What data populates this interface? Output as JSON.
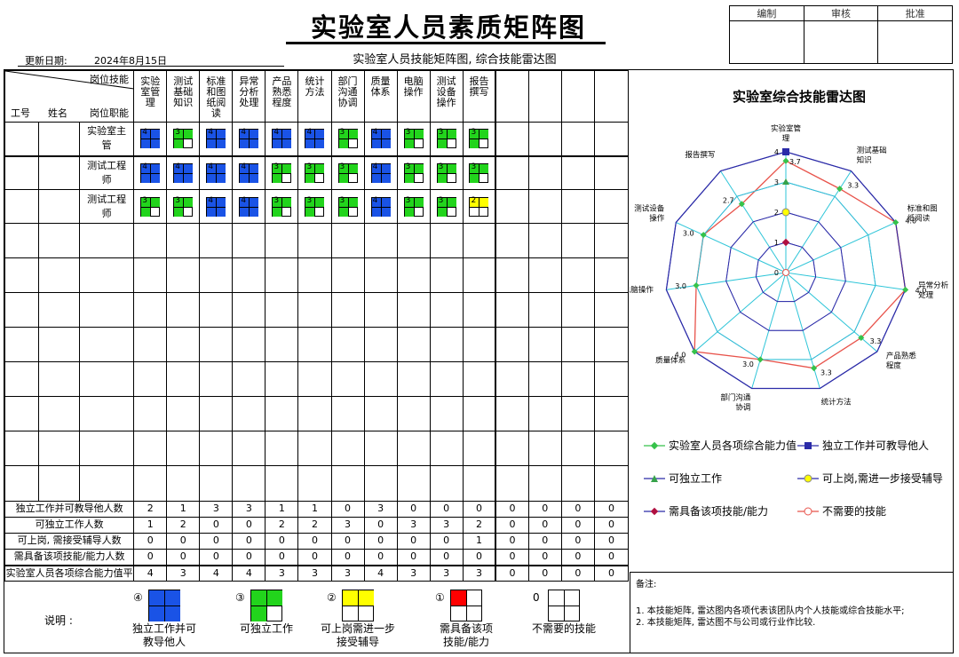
{
  "header": {
    "title": "实验室人员素质矩阵图",
    "update_label": "更新日期:",
    "update_date": "2024年8月15日",
    "subtitle": "实验室人员技能矩阵图, 综合技能雷达图",
    "approvals": [
      "编制",
      "审核",
      "批准"
    ]
  },
  "matrix": {
    "corner_top": "岗位技能",
    "col_id": "工号",
    "col_name": "姓名",
    "col_role": "岗位职能",
    "skills": [
      "实验\n室管\n理",
      "测试\n基础\n知识",
      "标准\n和图\n纸阅\n读",
      "异常\n分析\n处理",
      "产品\n熟悉\n程度",
      "统计\n方法",
      "部门\n沟通\n协调",
      "质量\n体系",
      "电脑\n操作",
      "测试\n设备\n操作",
      "报告\n撰写",
      "",
      "",
      "",
      ""
    ],
    "people": [
      {
        "id": "",
        "name": "",
        "role": "实验室主管",
        "levels": [
          4,
          3,
          4,
          4,
          4,
          4,
          3,
          4,
          3,
          3,
          3
        ]
      },
      {
        "id": "",
        "name": "",
        "role": "测试工程师",
        "levels": [
          4,
          4,
          4,
          4,
          3,
          3,
          3,
          4,
          3,
          3,
          3
        ]
      },
      {
        "id": "",
        "name": "",
        "role": "测试工程师",
        "levels": [
          3,
          3,
          4,
          4,
          3,
          3,
          3,
          4,
          3,
          3,
          2
        ]
      }
    ],
    "summary": [
      {
        "label": "独立工作并可教导他人数",
        "values": [
          "2",
          "1",
          "3",
          "3",
          "1",
          "1",
          "0",
          "3",
          "0",
          "0",
          "0",
          "0",
          "0",
          "0",
          "0"
        ]
      },
      {
        "label": "可独立工作人数",
        "values": [
          "1",
          "2",
          "0",
          "0",
          "2",
          "2",
          "3",
          "0",
          "3",
          "3",
          "2",
          "0",
          "0",
          "0",
          "0"
        ]
      },
      {
        "label": "可上岗, 需接受辅导人数",
        "values": [
          "0",
          "0",
          "0",
          "0",
          "0",
          "0",
          "0",
          "0",
          "0",
          "0",
          "1",
          "0",
          "0",
          "0",
          "0"
        ]
      },
      {
        "label": "需具备该项技能/能力人数",
        "values": [
          "0",
          "0",
          "0",
          "0",
          "0",
          "0",
          "0",
          "0",
          "0",
          "0",
          "0",
          "0",
          "0",
          "0",
          "0"
        ]
      },
      {
        "label": "实验室人员各项综合能力值平",
        "values": [
          "4",
          "3",
          "4",
          "4",
          "3",
          "3",
          "3",
          "4",
          "3",
          "3",
          "3",
          "0",
          "0",
          "0",
          "0"
        ]
      }
    ]
  },
  "colors": {
    "level4": "#1a53e6",
    "level3": "#22d41c",
    "level2": "#ffff00",
    "level1": "#ff0000"
  },
  "legend": {
    "label": "说明 :",
    "items": [
      {
        "mark": "④",
        "text": "独立工作并可\n教导他人",
        "level": 4
      },
      {
        "mark": "③",
        "text": "可独立工作",
        "level": 3
      },
      {
        "mark": "②",
        "text": "可上岗需进一步\n接受辅导",
        "level": 2
      },
      {
        "mark": "①",
        "text": "需具备该项\n技能/能力",
        "level": 1
      },
      {
        "mark": "0",
        "text": "不需要的技能",
        "level": 0
      }
    ]
  },
  "chart_data": {
    "type": "radar",
    "title": "实验室综合技能雷达图",
    "axes": [
      "实验室管理",
      "测试基础知识",
      "标准和图纸阅读",
      "异常分析处理",
      "产品熟悉程度",
      "统计方法",
      "部门沟通协调",
      "质量体系",
      "电脑操作",
      "测试设备操作",
      "报告撰写"
    ],
    "axis_labels": [
      "实验室管\n理",
      "测试基础\n知识",
      "标准和图\n纸阅读",
      "异常分析\n处理",
      "产品熟悉\n程度",
      "统计方法",
      "部门沟通\n协调",
      "质量体系",
      "电脑操作",
      "测试设备\n操作",
      "报告撰写"
    ],
    "scale_labels": [
      "0",
      "1",
      "2",
      "3",
      "4"
    ],
    "range": [
      0,
      4
    ],
    "series": [
      {
        "name": "实验室人员各项综合能力值",
        "values": [
          3.7,
          3.3,
          4.0,
          4.0,
          3.3,
          3.3,
          3.0,
          4.0,
          3.0,
          3.0,
          2.7
        ],
        "color": "#e8534b",
        "marker": "diamond"
      },
      {
        "name": "独立工作并可教导他人",
        "values": [
          4,
          4,
          4,
          4,
          4,
          4,
          4,
          4,
          4,
          4,
          4
        ],
        "color": "#2b2ba8",
        "marker": "square"
      },
      {
        "name": "可独立工作",
        "values": [
          3,
          3,
          3,
          3,
          3,
          3,
          3,
          3,
          3,
          3,
          3
        ],
        "color": "#2ec5d8",
        "marker": "triangle"
      },
      {
        "name": "可上岗,需进一步接受辅导",
        "values": [
          2,
          2,
          2,
          2,
          2,
          2,
          2,
          2,
          2,
          2,
          2
        ],
        "color": "#2b2ba8",
        "marker": "circle"
      },
      {
        "name": "需具备该项技能/能力",
        "values": [
          1,
          1,
          1,
          1,
          1,
          1,
          1,
          1,
          1,
          1,
          1
        ],
        "color": "#2b2ba8",
        "marker": "diamond"
      },
      {
        "name": "不需要的技能",
        "values": [
          0,
          0,
          0,
          0,
          0,
          0,
          0,
          0,
          0,
          0,
          0
        ],
        "color": "#e8534b",
        "marker": "circle-open"
      }
    ],
    "data_labels": [
      "3.7",
      "3.3",
      "4.0",
      "4.0",
      "3.3",
      "3.3",
      "3.0",
      "4.0",
      "3.0",
      "3.0",
      "2.7"
    ],
    "legend_position": "bottom"
  },
  "notes": {
    "title": "备注:",
    "lines": [
      "1. 本技能矩阵, 雷达图内各项代表该团队内个人技能或综合技能水平;",
      "2. 本技能矩阵, 雷达图不与公司或行业作比较."
    ]
  }
}
